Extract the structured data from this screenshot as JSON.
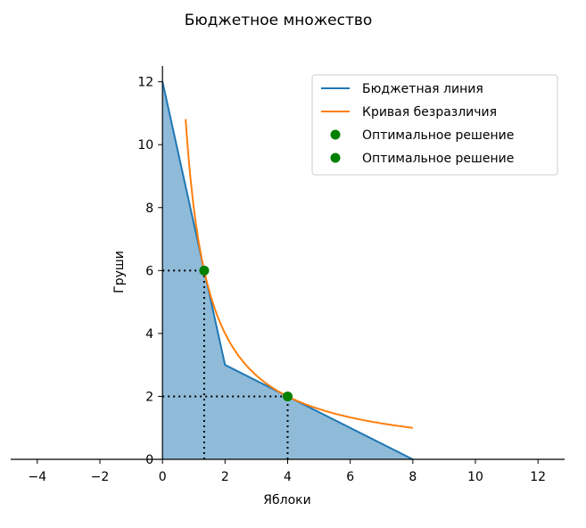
{
  "chart_data": {
    "type": "line",
    "title": "Бюджетное множество",
    "xlabel": "Яблоки",
    "ylabel": "Груши",
    "xlim": [
      -4.85,
      12.85
    ],
    "ylim": [
      0,
      12.5
    ],
    "x_ticks": [
      -4,
      -2,
      0,
      2,
      4,
      6,
      8,
      10,
      12
    ],
    "x_tick_labels": [
      "−4",
      "−2",
      "0",
      "2",
      "4",
      "6",
      "8",
      "10",
      "12"
    ],
    "y_ticks": [
      0,
      2,
      4,
      6,
      8,
      10,
      12
    ],
    "y_tick_labels": [
      "0",
      "2",
      "4",
      "6",
      "8",
      "10",
      "12"
    ],
    "grid": false,
    "legend_position": "top-right",
    "budget_region": {
      "x": [
        0,
        2,
        8,
        0
      ],
      "y": [
        12,
        3,
        0,
        0
      ],
      "color": "#1f77b4",
      "opacity": 0.5
    },
    "series": [
      {
        "name": "Бюджетная линия",
        "kind": "line",
        "color": "#1f77b4",
        "x": [
          0,
          2,
          8
        ],
        "y": [
          12,
          3,
          0
        ]
      },
      {
        "name": "Кривая безразличия",
        "kind": "curve",
        "formula": "y = 8 / x",
        "color": "#ff7f0e",
        "x_range": [
          0.74,
          8
        ]
      },
      {
        "name": "Оптимальное решение",
        "kind": "scatter",
        "color": "#008000",
        "x": [
          1.333
        ],
        "y": [
          6
        ]
      },
      {
        "name": "Оптимальное решение",
        "kind": "scatter",
        "color": "#008000",
        "x": [
          4
        ],
        "y": [
          2
        ]
      }
    ],
    "guide_lines": [
      {
        "x": 1.333,
        "y": 6
      },
      {
        "x": 4,
        "y": 2
      }
    ]
  }
}
